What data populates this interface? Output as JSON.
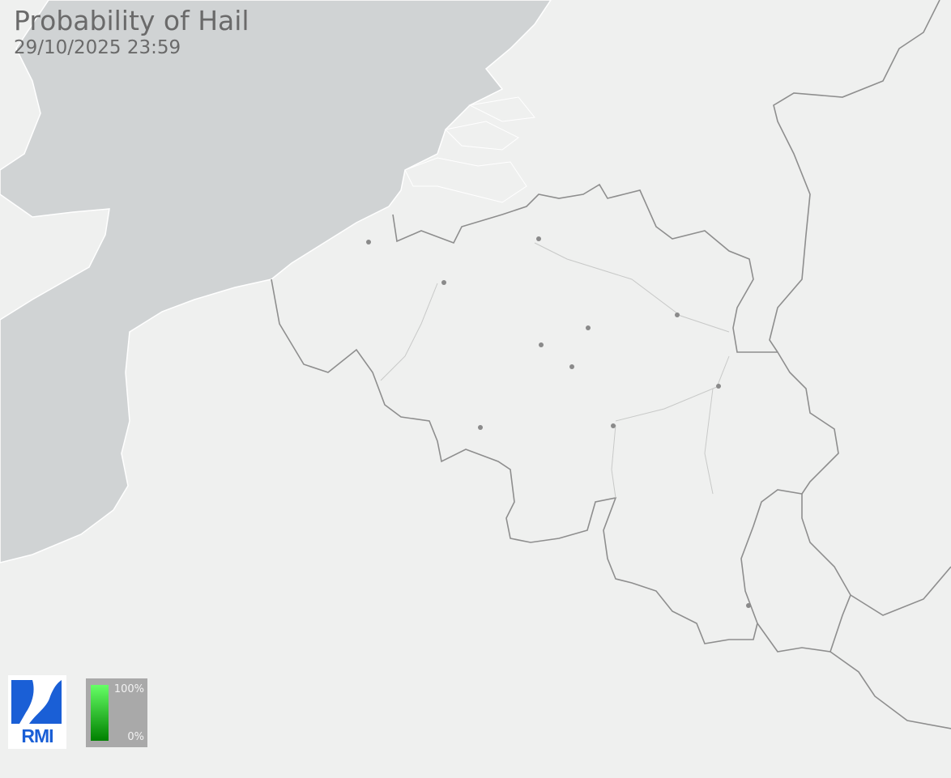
{
  "map": {
    "title": "Probability of Hail",
    "timestamp": "29/10/2025 23:59",
    "colors": {
      "land": "#eff0ef",
      "sea": "#d0d3d4",
      "border": "#8e8e8e",
      "city": "#8a8a8a",
      "logo": "#1a5fd6"
    },
    "legend": {
      "max_label": "100%",
      "min_label": "0%",
      "gradient_top": "#66ff66",
      "gradient_bottom": "#008000"
    },
    "logo": {
      "text": "RMI"
    }
  }
}
